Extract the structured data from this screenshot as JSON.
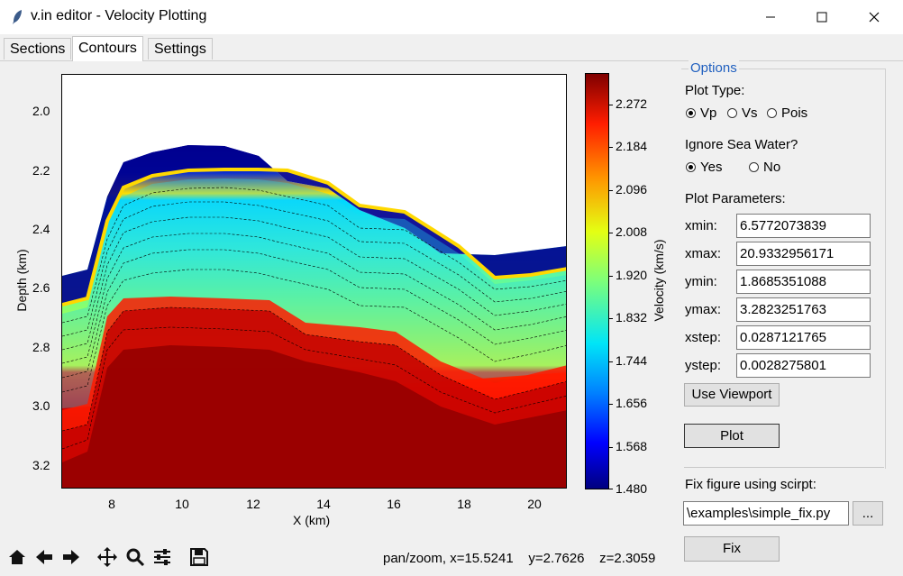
{
  "window": {
    "title": "v.in editor - Velocity Plotting"
  },
  "tabs": [
    "Sections",
    "Contours",
    "Settings"
  ],
  "plot": {
    "ylabel": "Depth (km)",
    "xlabel": "X (km)",
    "yticks": [
      "2.0",
      "2.2",
      "2.4",
      "2.6",
      "2.8",
      "3.0",
      "3.2"
    ],
    "xticks": [
      "8",
      "10",
      "12",
      "14",
      "16",
      "18",
      "20"
    ],
    "colorbar_label": "Velocity (km/s)",
    "colorbar_ticks": [
      "2.272",
      "2.184",
      "2.096",
      "2.008",
      "1.920",
      "1.832",
      "1.744",
      "1.656",
      "1.568",
      "1.480"
    ]
  },
  "options": {
    "legend": "Options",
    "plot_type_label": "Plot Type:",
    "plot_types": [
      "Vp",
      "Vs",
      "Pois"
    ],
    "plot_type_selected": "Vp",
    "ignore_sea_label": "Ignore Sea Water?",
    "ignore_sea_options": [
      "Yes",
      "No"
    ],
    "ignore_sea_selected": "Yes",
    "params_label": "Plot Parameters:",
    "params": [
      {
        "name": "xmin:",
        "value": "6.5772073839"
      },
      {
        "name": "xmax:",
        "value": "20.9332956171"
      },
      {
        "name": "ymin:",
        "value": "1.8685351088"
      },
      {
        "name": "ymax:",
        "value": "3.2823251763"
      },
      {
        "name": "xstep:",
        "value": "0.0287121765"
      },
      {
        "name": "ystep:",
        "value": "0.0028275801"
      }
    ],
    "use_viewport": "Use Viewport",
    "plot_button": "Plot",
    "fix_label": "Fix figure using scirpt:",
    "fix_path": "\\examples\\simple_fix.py",
    "browse": "...",
    "fix_button": "Fix"
  },
  "status": {
    "text": "pan/zoom, x=15.5241    y=2.7626    z=2.3059"
  },
  "colors": {
    "accent": "#1f5fbf"
  }
}
